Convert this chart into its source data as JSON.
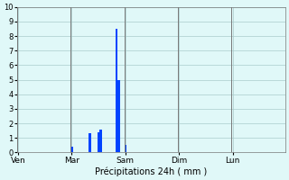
{
  "bar_color": "#0044ff",
  "bg_color": "#e0f8f8",
  "grid_color": "#aacccc",
  "text_color": "#000000",
  "ylim_min": 0,
  "ylim_max": 10,
  "yticks": [
    0,
    1,
    2,
    3,
    4,
    5,
    6,
    7,
    8,
    9,
    10
  ],
  "xlabel": "Précipitations 24h ( mm )",
  "day_labels": [
    "Ven",
    "Mar",
    "Sam",
    "Dim",
    "Lun"
  ],
  "day_positions": [
    0,
    24,
    48,
    72,
    96
  ],
  "num_bars": 120,
  "bar_values": [
    0,
    0,
    0,
    0,
    0,
    0,
    0,
    0,
    0,
    0,
    0,
    0,
    0,
    0,
    0,
    0,
    0,
    0,
    0,
    0,
    0,
    0,
    0,
    0,
    0.4,
    0,
    0,
    0,
    0,
    0,
    0,
    0,
    1.3,
    0,
    0,
    0,
    1.4,
    1.6,
    0,
    0,
    0,
    0,
    0,
    0,
    8.5,
    5.0,
    0,
    0,
    0.5,
    0,
    0,
    0,
    0,
    0,
    0,
    0,
    0,
    0,
    0,
    0,
    0,
    0,
    0,
    0,
    0,
    0,
    0,
    0,
    0,
    0,
    0,
    0,
    0,
    0,
    0,
    0,
    0,
    0,
    0,
    0,
    0,
    0,
    0,
    0,
    0,
    0,
    0,
    0,
    0,
    0,
    0,
    0,
    0,
    0,
    0,
    0,
    0,
    0,
    0,
    0,
    0,
    0,
    0,
    0,
    0,
    0,
    0,
    0,
    0,
    0,
    0,
    0,
    0,
    0,
    0,
    0,
    0,
    0,
    0,
    0
  ]
}
